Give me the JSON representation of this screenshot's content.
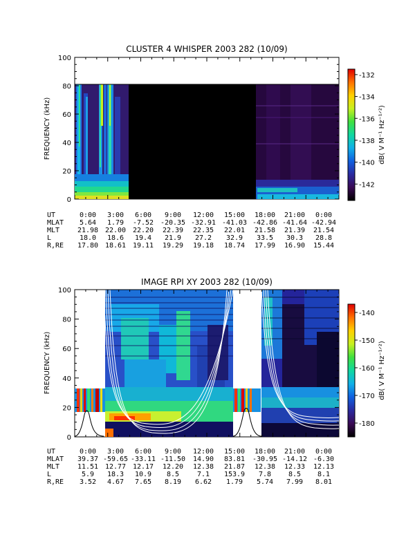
{
  "chart_data": [
    {
      "type": "heatmap",
      "title": "CLUSTER 4 WHISPER 2003 282 (10/09)",
      "ylabel": "FREQUENCY (kHz)",
      "ylim": [
        0,
        100
      ],
      "yticks": [
        "0",
        "20",
        "40",
        "60",
        "80",
        "100"
      ],
      "x_ticks": [
        "0:00",
        "3:00",
        "6:00",
        "9:00",
        "12:00",
        "15:00",
        "18:00",
        "21:00",
        "0:00"
      ],
      "colorbar": {
        "label": "dB( V M⁻¹ Hz⁻¹ᐟ²)",
        "range": [
          -143.5,
          -131.5
        ],
        "ticks": [
          "-132",
          "-134",
          "-136",
          "-138",
          "-140",
          "-142"
        ],
        "tick_values": [
          -132,
          -134,
          -136,
          -138,
          -140,
          -142
        ]
      },
      "data_extent_khz": [
        0,
        80
      ],
      "no_data_hours": [
        [
          5.0,
          16.3
        ]
      ],
      "ephemeris": {
        "labels": [
          "UT",
          "MLAT",
          "MLT",
          "L",
          "R,RE"
        ],
        "rows": [
          [
            "0:00",
            "3:00",
            "6:00",
            "9:00",
            "12:00",
            "15:00",
            "18:00",
            "21:00",
            "0:00"
          ],
          [
            "5.64",
            "1.79",
            "-7.52",
            "-20.35",
            "-32.91",
            "-41.03",
            "-42.86",
            "-41.64",
            "-42.94"
          ],
          [
            "21.98",
            "22.00",
            "22.20",
            "22.39",
            "22.35",
            "22.01",
            "21.58",
            "21.39",
            "21.54"
          ],
          [
            "18.0",
            "18.6",
            "19.4",
            "21.9",
            "27.2",
            "32.9",
            "33.5",
            "30.3",
            "28.8"
          ],
          [
            "17.80",
            "18.61",
            "19.11",
            "19.29",
            "19.18",
            "18.74",
            "17.99",
            "16.90",
            "15.44"
          ]
        ]
      }
    },
    {
      "type": "heatmap",
      "title": "IMAGE RPI XY 2003 282 (10/09)",
      "ylabel": "FREQUENCY (kHz)",
      "ylim": [
        0,
        100
      ],
      "yticks": [
        "0",
        "20",
        "40",
        "60",
        "80",
        "100"
      ],
      "x_ticks": [
        "0:00",
        "3:00",
        "6:00",
        "9:00",
        "12:00",
        "15:00",
        "18:00",
        "21:00",
        "0:00"
      ],
      "colorbar": {
        "label": "dB( V M⁻¹ Hz⁻¹ᐟ²)",
        "range": [
          -185,
          -137
        ],
        "ticks": [
          "-140",
          "-150",
          "-160",
          "-170",
          "-180"
        ],
        "tick_values": [
          -140,
          -150,
          -160,
          -170,
          -180
        ]
      },
      "ephemeris": {
        "labels": [
          "UT",
          "MLAT",
          "MLT",
          "L",
          "R,RE"
        ],
        "rows": [
          [
            "0:00",
            "3:00",
            "6:00",
            "9:00",
            "12:00",
            "15:00",
            "18:00",
            "21:00",
            "0:00"
          ],
          [
            "39.37",
            "-59.65",
            "-33.11",
            "-11.50",
            "14.90",
            "83.81",
            "-30.95",
            "-14.12",
            "-6.30"
          ],
          [
            "11.51",
            "12.77",
            "12.17",
            "12.20",
            "12.38",
            "21.87",
            "12.38",
            "12.33",
            "12.13"
          ],
          [
            "5.9",
            "18.3",
            "10.9",
            "8.5",
            "7.1",
            "153.9",
            "7.8",
            "8.5",
            "8.1"
          ],
          [
            "3.52",
            "4.67",
            "7.65",
            "8.19",
            "6.62",
            "1.79",
            "5.74",
            "7.99",
            "8.01"
          ]
        ]
      }
    }
  ]
}
